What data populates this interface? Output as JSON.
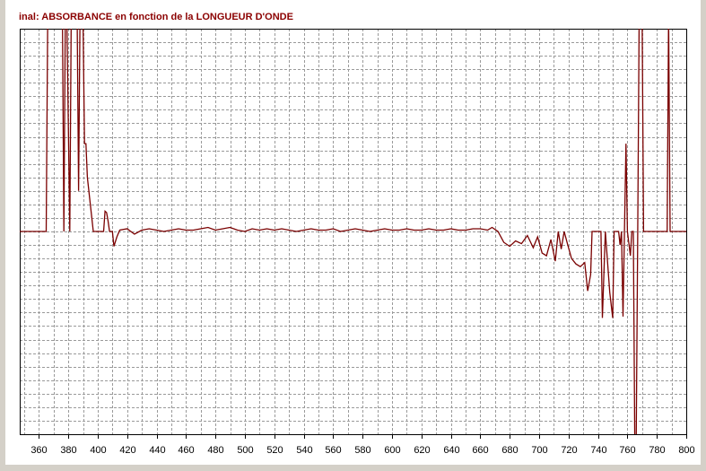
{
  "chart_data": {
    "type": "line",
    "title": "inal: ABSORBANCE en fonction de la LONGUEUR D'ONDE",
    "color": "#7a0000",
    "xlim": [
      347,
      800
    ],
    "xticks": [
      360,
      380,
      400,
      420,
      440,
      460,
      480,
      500,
      520,
      540,
      560,
      580,
      600,
      620,
      640,
      660,
      680,
      700,
      720,
      740,
      760,
      780,
      800
    ],
    "xminorticks": [
      350,
      370,
      390,
      410,
      430,
      450,
      470,
      490,
      510,
      530,
      550,
      570,
      590,
      610,
      630,
      650,
      670,
      690,
      710,
      730,
      750,
      770,
      790
    ],
    "ylim": [
      -15,
      15
    ],
    "yticks": [
      -14,
      -13,
      -12,
      -11,
      -10,
      -9,
      -8,
      -7,
      -6,
      -5,
      -4,
      -3,
      -2,
      -1,
      0,
      1,
      2,
      3,
      4,
      5,
      6,
      7,
      8,
      9,
      10,
      11,
      12,
      13,
      14
    ],
    "grid": true,
    "x": [
      347,
      365,
      366,
      367,
      376,
      377,
      378,
      379,
      381,
      382,
      386,
      387,
      388,
      389,
      390,
      391,
      392,
      393,
      395,
      397,
      404,
      405,
      406,
      407,
      408,
      410,
      411,
      413,
      415,
      420,
      425,
      430,
      435,
      440,
      445,
      450,
      455,
      460,
      465,
      470,
      475,
      480,
      485,
      490,
      495,
      500,
      505,
      510,
      515,
      520,
      525,
      530,
      535,
      540,
      545,
      550,
      555,
      560,
      565,
      570,
      575,
      580,
      585,
      590,
      595,
      600,
      605,
      610,
      615,
      620,
      625,
      630,
      635,
      640,
      645,
      650,
      655,
      660,
      665,
      668,
      672,
      676,
      680,
      684,
      688,
      692,
      696,
      699,
      702,
      705,
      708,
      711,
      713,
      715,
      717,
      719,
      722,
      725,
      728,
      731,
      733,
      735,
      736,
      742,
      743,
      745,
      748,
      750,
      751,
      754,
      755,
      756,
      757,
      758,
      759,
      760,
      762,
      763,
      764,
      765,
      766,
      767,
      768,
      770,
      771,
      787,
      788,
      789,
      800
    ],
    "values": [
      0,
      0,
      16,
      16,
      16,
      0,
      16,
      16,
      0,
      16,
      16,
      3,
      16,
      16,
      16,
      6.5,
      6.5,
      4,
      2,
      0,
      0,
      1.5,
      1.4,
      0.8,
      0,
      0,
      -1.1,
      -0.4,
      0.1,
      0.2,
      -0.2,
      0.1,
      0.2,
      0.1,
      0,
      0.1,
      0.2,
      0.1,
      0.1,
      0.2,
      0.3,
      0.1,
      0.2,
      0.3,
      0.1,
      0,
      0.2,
      0.1,
      0.2,
      0.1,
      0.2,
      0.1,
      0,
      0.1,
      0.2,
      0.1,
      0.1,
      0.2,
      0,
      0.1,
      0.2,
      0.1,
      0,
      0.1,
      0.2,
      0.1,
      0.1,
      0.2,
      0.1,
      0.1,
      0.2,
      0.1,
      0.1,
      0.2,
      0.1,
      0.1,
      0.2,
      0.2,
      0.1,
      0.3,
      0,
      -0.8,
      -1.1,
      -0.7,
      -0.9,
      -0.3,
      -1.2,
      -0.4,
      -1.6,
      -1.8,
      -0.6,
      -2.2,
      0,
      -1.3,
      0,
      -0.8,
      -2.0,
      -2.4,
      -2.6,
      -2.3,
      -4.4,
      -3.2,
      0,
      0,
      -6.4,
      0,
      -4.5,
      -6.4,
      0,
      0,
      -1,
      0,
      -6.3,
      0,
      6.5,
      0,
      -1.8,
      0,
      0,
      -15.5,
      -15.5,
      0,
      16,
      16,
      0,
      0,
      16,
      0,
      0
    ]
  }
}
